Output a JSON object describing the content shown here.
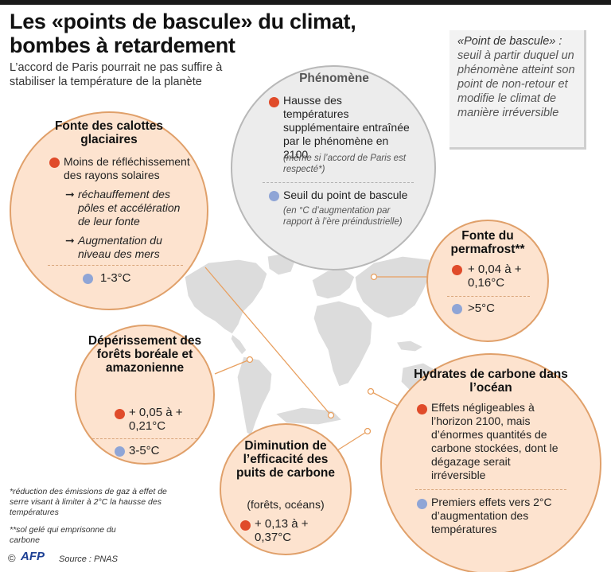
{
  "title_line1": "Les «points de bascule» du climat,",
  "title_line2": "bombes à retardement",
  "subtitle": "L’accord de Paris pourrait ne pas suffire à stabiliser la température de la planète",
  "definition": {
    "head": "«Point de bascule» :",
    "body": "seuil à partir duquel un phénomène atteint son point de non-retour et modifie le climat de manière irréversible"
  },
  "legend": {
    "heading": "Phénomène",
    "red_text": "Hausse des températures supplémentaire entraînée par le phénomène en 2100",
    "red_note": "(même si l’accord de Paris est respecté*)",
    "blue_text": "Seuil du point de bascule",
    "blue_note": "(en °C d’augmentation par rapport à l’ère préindustrielle)"
  },
  "calottes": {
    "title": "Fonte des calottes glaciaires",
    "effect": "Moins de réfléchissement des rayons solaires",
    "consequence1": "réchauffement des pôles et accélération de leur fonte",
    "consequence2": "Augmentation du niveau des mers",
    "threshold": "1-3°C"
  },
  "permafrost": {
    "title": "Fonte du permafrost**",
    "value": "+ 0,04 à + 0,16°C",
    "threshold": ">5°C"
  },
  "forets": {
    "title": "Dépérissement des forêts boréale et amazonienne",
    "value": "+ 0,05 à + 0,21°C",
    "threshold": "3-5°C"
  },
  "puits": {
    "title": "Diminution de l’efficacité des puits de carbone",
    "subtitle": "(forêts, océans)",
    "value": "+ 0,13 à + 0,37°C"
  },
  "hydrates": {
    "title": "Hydrates de carbone dans l’océan",
    "effect": "Effets négligeables à l’horizon 2100, mais d’énormes quantités de carbone stockées, dont le dégazage serait irréversible",
    "threshold": "Premiers effets vers 2°C d’augmentation des températures"
  },
  "footnote1": "*réduction des émissions de gaz à effet de serre visant à limiter à 2°C la hausse des températures",
  "footnote2": "**sol gelé qui emprisonne du carbone",
  "copyright": "©",
  "agency": "AFP",
  "source": "Source : PNAS",
  "colors": {
    "increase_dot": "#e04b2a",
    "threshold_dot": "#8fa5d6",
    "circle_fill": "#fde3cf",
    "legend_fill": "#ececec"
  }
}
